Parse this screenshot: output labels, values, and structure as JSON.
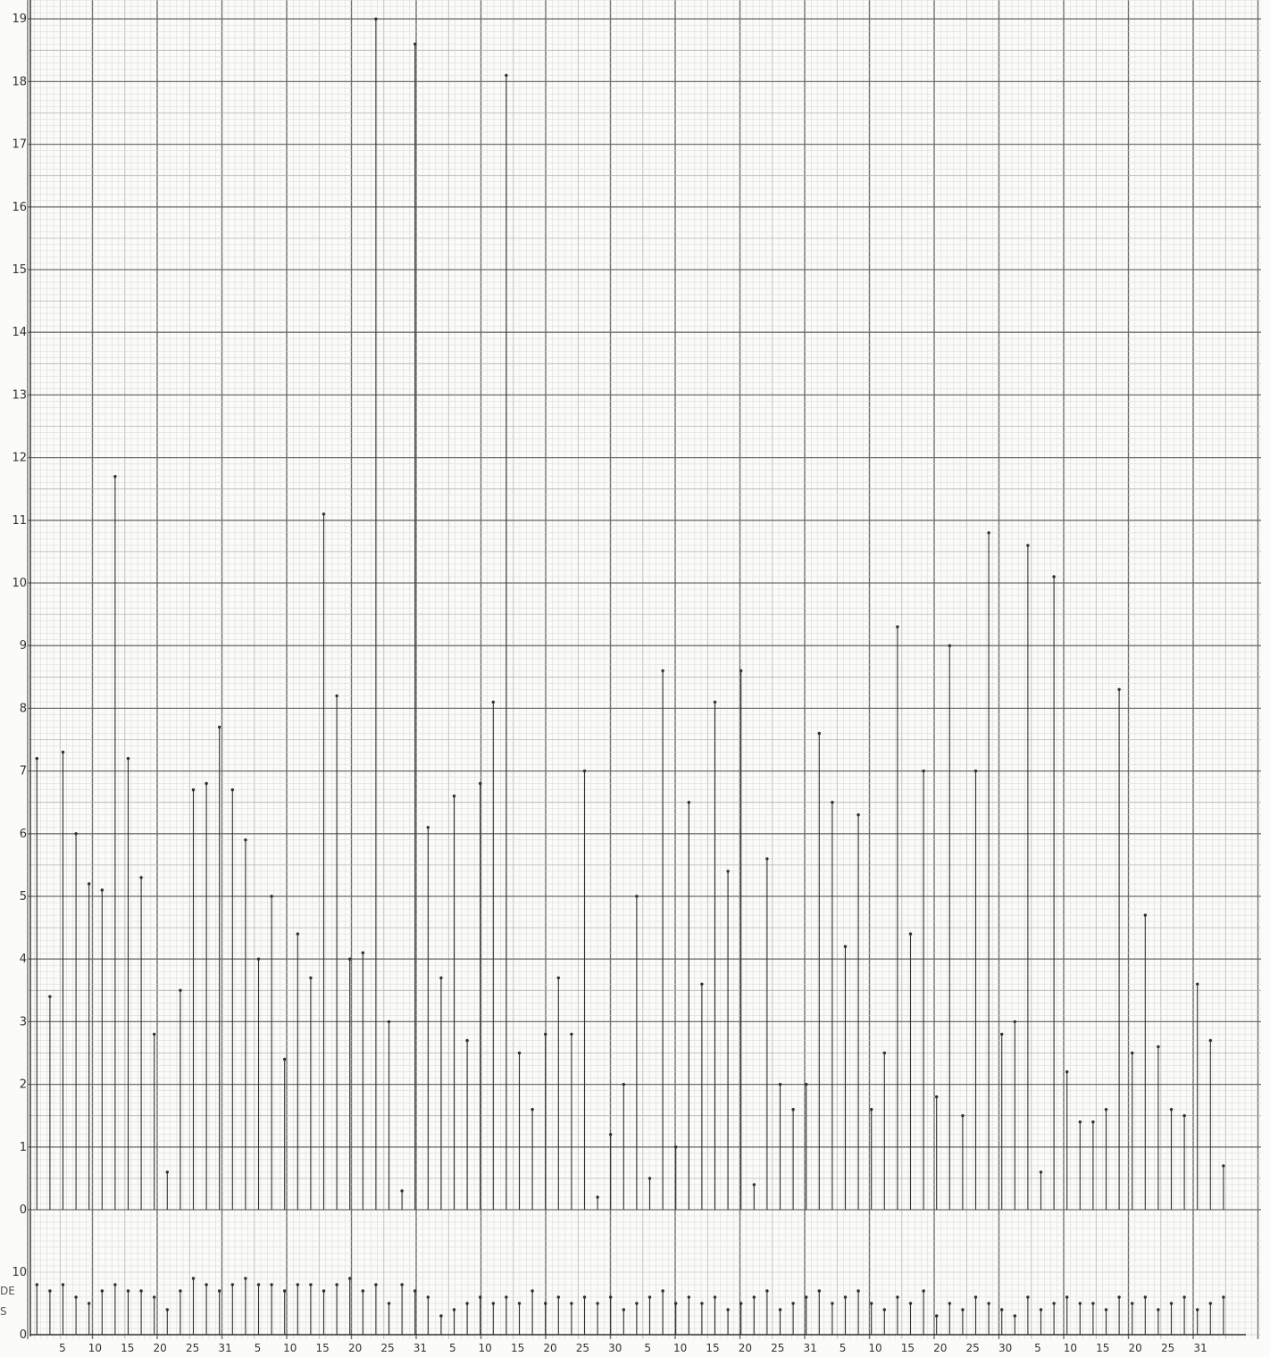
{
  "colors": {
    "paper": "#fbfbf9",
    "grid_minor": "#d6d6d2",
    "grid_mid": "#b4b4b0",
    "grid_major": "#6e6e6a",
    "ink": "#2f2f2f"
  },
  "left_stub_text": [
    "DE",
    "S"
  ],
  "chart_data": [
    {
      "type": "bar",
      "style": "vertical line drop (needle) with dot at top",
      "title": "",
      "xlabel": "",
      "ylabel": "",
      "ylim": [
        0,
        19.2
      ],
      "y_ticks": [
        "0",
        "1",
        "2",
        "3",
        "4",
        "5",
        "6",
        "7",
        "8",
        "9",
        "10",
        "11",
        "12",
        "13",
        "14",
        "15",
        "16",
        "17",
        "18",
        "19"
      ],
      "x_tick_labels": [
        "5",
        "10",
        "15",
        "20",
        "25",
        "31",
        "5",
        "10",
        "15",
        "20",
        "25",
        "31",
        "5",
        "10",
        "15",
        "20",
        "25",
        "30",
        "5",
        "10",
        "15",
        "20",
        "25",
        "31",
        "5",
        "10",
        "15",
        "20",
        "25",
        "30",
        "5",
        "10",
        "15",
        "20",
        "25",
        "31"
      ],
      "x": [
        1,
        3,
        5,
        7,
        9,
        11,
        13,
        15,
        17,
        19,
        21,
        23,
        25,
        27,
        29,
        31,
        33,
        35,
        37,
        39,
        41,
        43,
        45,
        47,
        49,
        51,
        53,
        55,
        57,
        59,
        61,
        63,
        65,
        67,
        69,
        71,
        73,
        75,
        77,
        79,
        81,
        83,
        85,
        87,
        89,
        91,
        93,
        95,
        97,
        99,
        101,
        103,
        105,
        107,
        109,
        111,
        113,
        115,
        117,
        119,
        121,
        123,
        125,
        127,
        129,
        131,
        133,
        135,
        137,
        139,
        141,
        143,
        145,
        147,
        149,
        151,
        153,
        155,
        157,
        159,
        161,
        163,
        165,
        167,
        169,
        171,
        173,
        175,
        177,
        179,
        181,
        183
      ],
      "values": [
        7.2,
        3.4,
        7.3,
        6.0,
        5.2,
        5.1,
        11.7,
        7.2,
        5.3,
        2.8,
        0.6,
        3.5,
        6.7,
        6.8,
        7.7,
        6.7,
        5.9,
        4.0,
        5.0,
        2.4,
        4.4,
        3.7,
        11.1,
        8.2,
        4.0,
        4.1,
        19.0,
        3.0,
        0.3,
        18.6,
        6.1,
        3.7,
        6.6,
        2.7,
        6.8,
        8.1,
        18.1,
        2.5,
        1.6,
        2.8,
        3.7,
        2.8,
        7.0,
        0.2,
        1.2,
        2.0,
        5.0,
        0.5,
        8.6,
        1.0,
        6.5,
        3.6,
        8.1,
        5.4,
        8.6,
        0.4,
        5.6,
        2.0,
        1.6,
        2.0,
        7.6,
        6.5,
        4.2,
        6.3,
        1.6,
        2.5,
        9.3,
        4.4,
        7.0,
        1.8,
        9.0,
        1.5,
        7.0,
        10.8,
        2.8,
        3.0,
        10.6,
        0.6,
        10.1,
        2.2,
        1.4,
        1.4,
        1.6,
        8.3,
        2.5,
        4.7,
        2.6,
        1.6,
        1.5,
        3.6,
        2.7,
        0.7
      ]
    },
    {
      "type": "bar",
      "style": "vertical line drop (needle) with dot at top",
      "title": "",
      "xlabel": "",
      "ylabel": "",
      "ylim": [
        0,
        10
      ],
      "y_ticks": [
        "0",
        "10"
      ],
      "x": [
        1,
        3,
        5,
        7,
        9,
        11,
        13,
        15,
        17,
        19,
        21,
        23,
        25,
        27,
        29,
        31,
        33,
        35,
        37,
        39,
        41,
        43,
        45,
        47,
        49,
        51,
        53,
        55,
        57,
        59,
        61,
        63,
        65,
        67,
        69,
        71,
        73,
        75,
        77,
        79,
        81,
        83,
        85,
        87,
        89,
        91,
        93,
        95,
        97,
        99,
        101,
        103,
        105,
        107,
        109,
        111,
        113,
        115,
        117,
        119,
        121,
        123,
        125,
        127,
        129,
        131,
        133,
        135,
        137,
        139,
        141,
        143,
        145,
        147,
        149,
        151,
        153,
        155,
        157,
        159,
        161,
        163,
        165,
        167,
        169,
        171,
        173,
        175,
        177,
        179,
        181,
        183
      ],
      "values": [
        8,
        7,
        8,
        6,
        5,
        7,
        8,
        7,
        7,
        6,
        4,
        7,
        9,
        8,
        7,
        8,
        9,
        8,
        8,
        7,
        8,
        8,
        7,
        8,
        9,
        7,
        8,
        5,
        8,
        7,
        6,
        3,
        4,
        5,
        6,
        5,
        6,
        5,
        7,
        5,
        6,
        5,
        6,
        5,
        6,
        4,
        5,
        6,
        7,
        5,
        6,
        5,
        6,
        4,
        5,
        6,
        7,
        4,
        5,
        6,
        7,
        5,
        6,
        7,
        5,
        4,
        6,
        5,
        7,
        3,
        5,
        4,
        6,
        5,
        4,
        3,
        6,
        4,
        5,
        6,
        5,
        5,
        4,
        6,
        5,
        6,
        4,
        5,
        6,
        4,
        5,
        6
      ]
    }
  ]
}
